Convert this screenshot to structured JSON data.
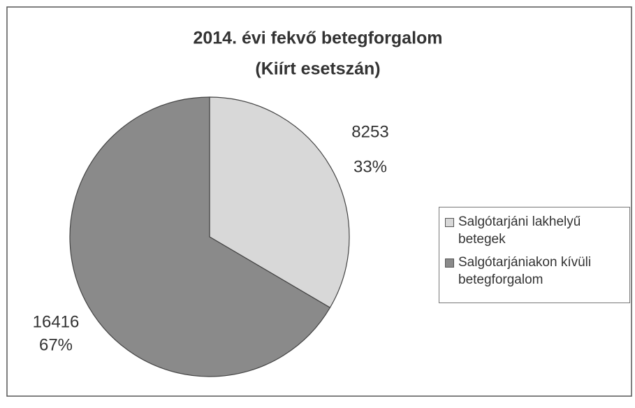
{
  "chart_data": {
    "type": "pie",
    "title": "2014. évi fekvő betegforgalom",
    "subtitle": "(Kiírt esetszán)",
    "categories": [
      "Salgótarjáni lakhelyű betegek",
      "Salgótarjániakon kívüli betegforgalom"
    ],
    "values": [
      8253,
      16416
    ],
    "percent_labels": [
      "33%",
      "67%"
    ],
    "colors": [
      "#d8d8d8",
      "#8a8a8a"
    ],
    "legend": "right"
  }
}
